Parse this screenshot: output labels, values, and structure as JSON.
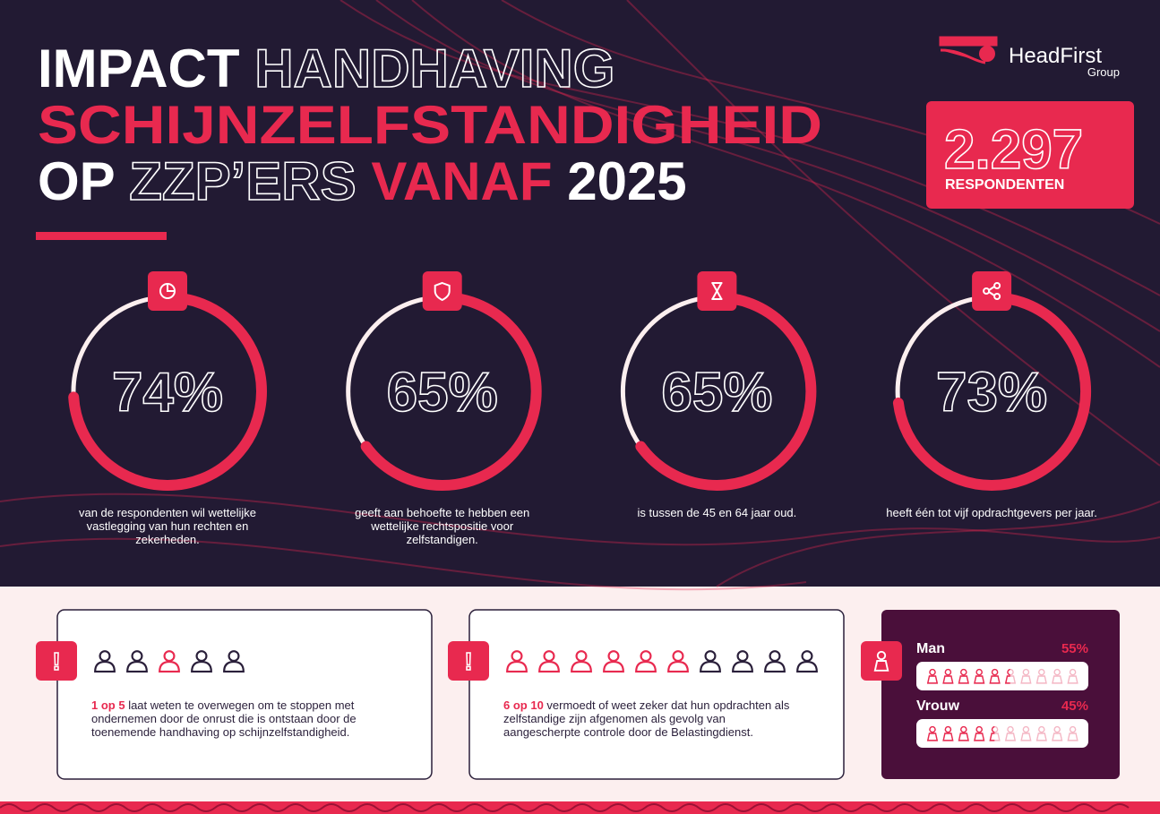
{
  "logo": {
    "name": "HeadFirst",
    "sub": "Group"
  },
  "title": {
    "line1": [
      "IMPACT",
      "HANDHAVING"
    ],
    "line2": "SCHIJNZELFSTANDIGHEID",
    "line3": [
      "OP",
      "ZZP’ERS",
      "VANAF",
      "2025"
    ]
  },
  "respondents": {
    "value": "2.297",
    "label": "RESPONDENTEN"
  },
  "stats": [
    {
      "value": 74,
      "value_label": "74%",
      "caption": "van de respondenten wil wettelijke vastlegging van hun rechten en zekerheden."
    },
    {
      "value": 65,
      "value_label": "65%",
      "caption": "geeft aan behoefte te hebben een wettelijke rechtspositie voor zelfstandigen."
    },
    {
      "value": 65,
      "value_label": "65%",
      "caption": "is tussen de 45 en 64 jaar oud."
    },
    {
      "value": 73,
      "value_label": "73%",
      "caption": "heeft één tot vijf opdrachtgevers per jaar."
    }
  ],
  "facts": [
    {
      "highlight": "1 op 5",
      "text": " laat weten te overwegen om te stoppen met ondernemen door de onrust die is ontstaan door de toenemende handhaving op schijnzelfstandigheid."
    },
    {
      "highlight": "6 op 10",
      "text": " vermoedt of weet zeker dat hun opdrachten als zelfstandige zijn afgenomen als gevolg van aangescherpte controle door de Belastingdienst."
    }
  ],
  "gender": [
    {
      "name": "Man",
      "value": 55,
      "value_label": "55%"
    },
    {
      "name": "Vrouw",
      "value": 45,
      "value_label": "45%"
    }
  ]
}
